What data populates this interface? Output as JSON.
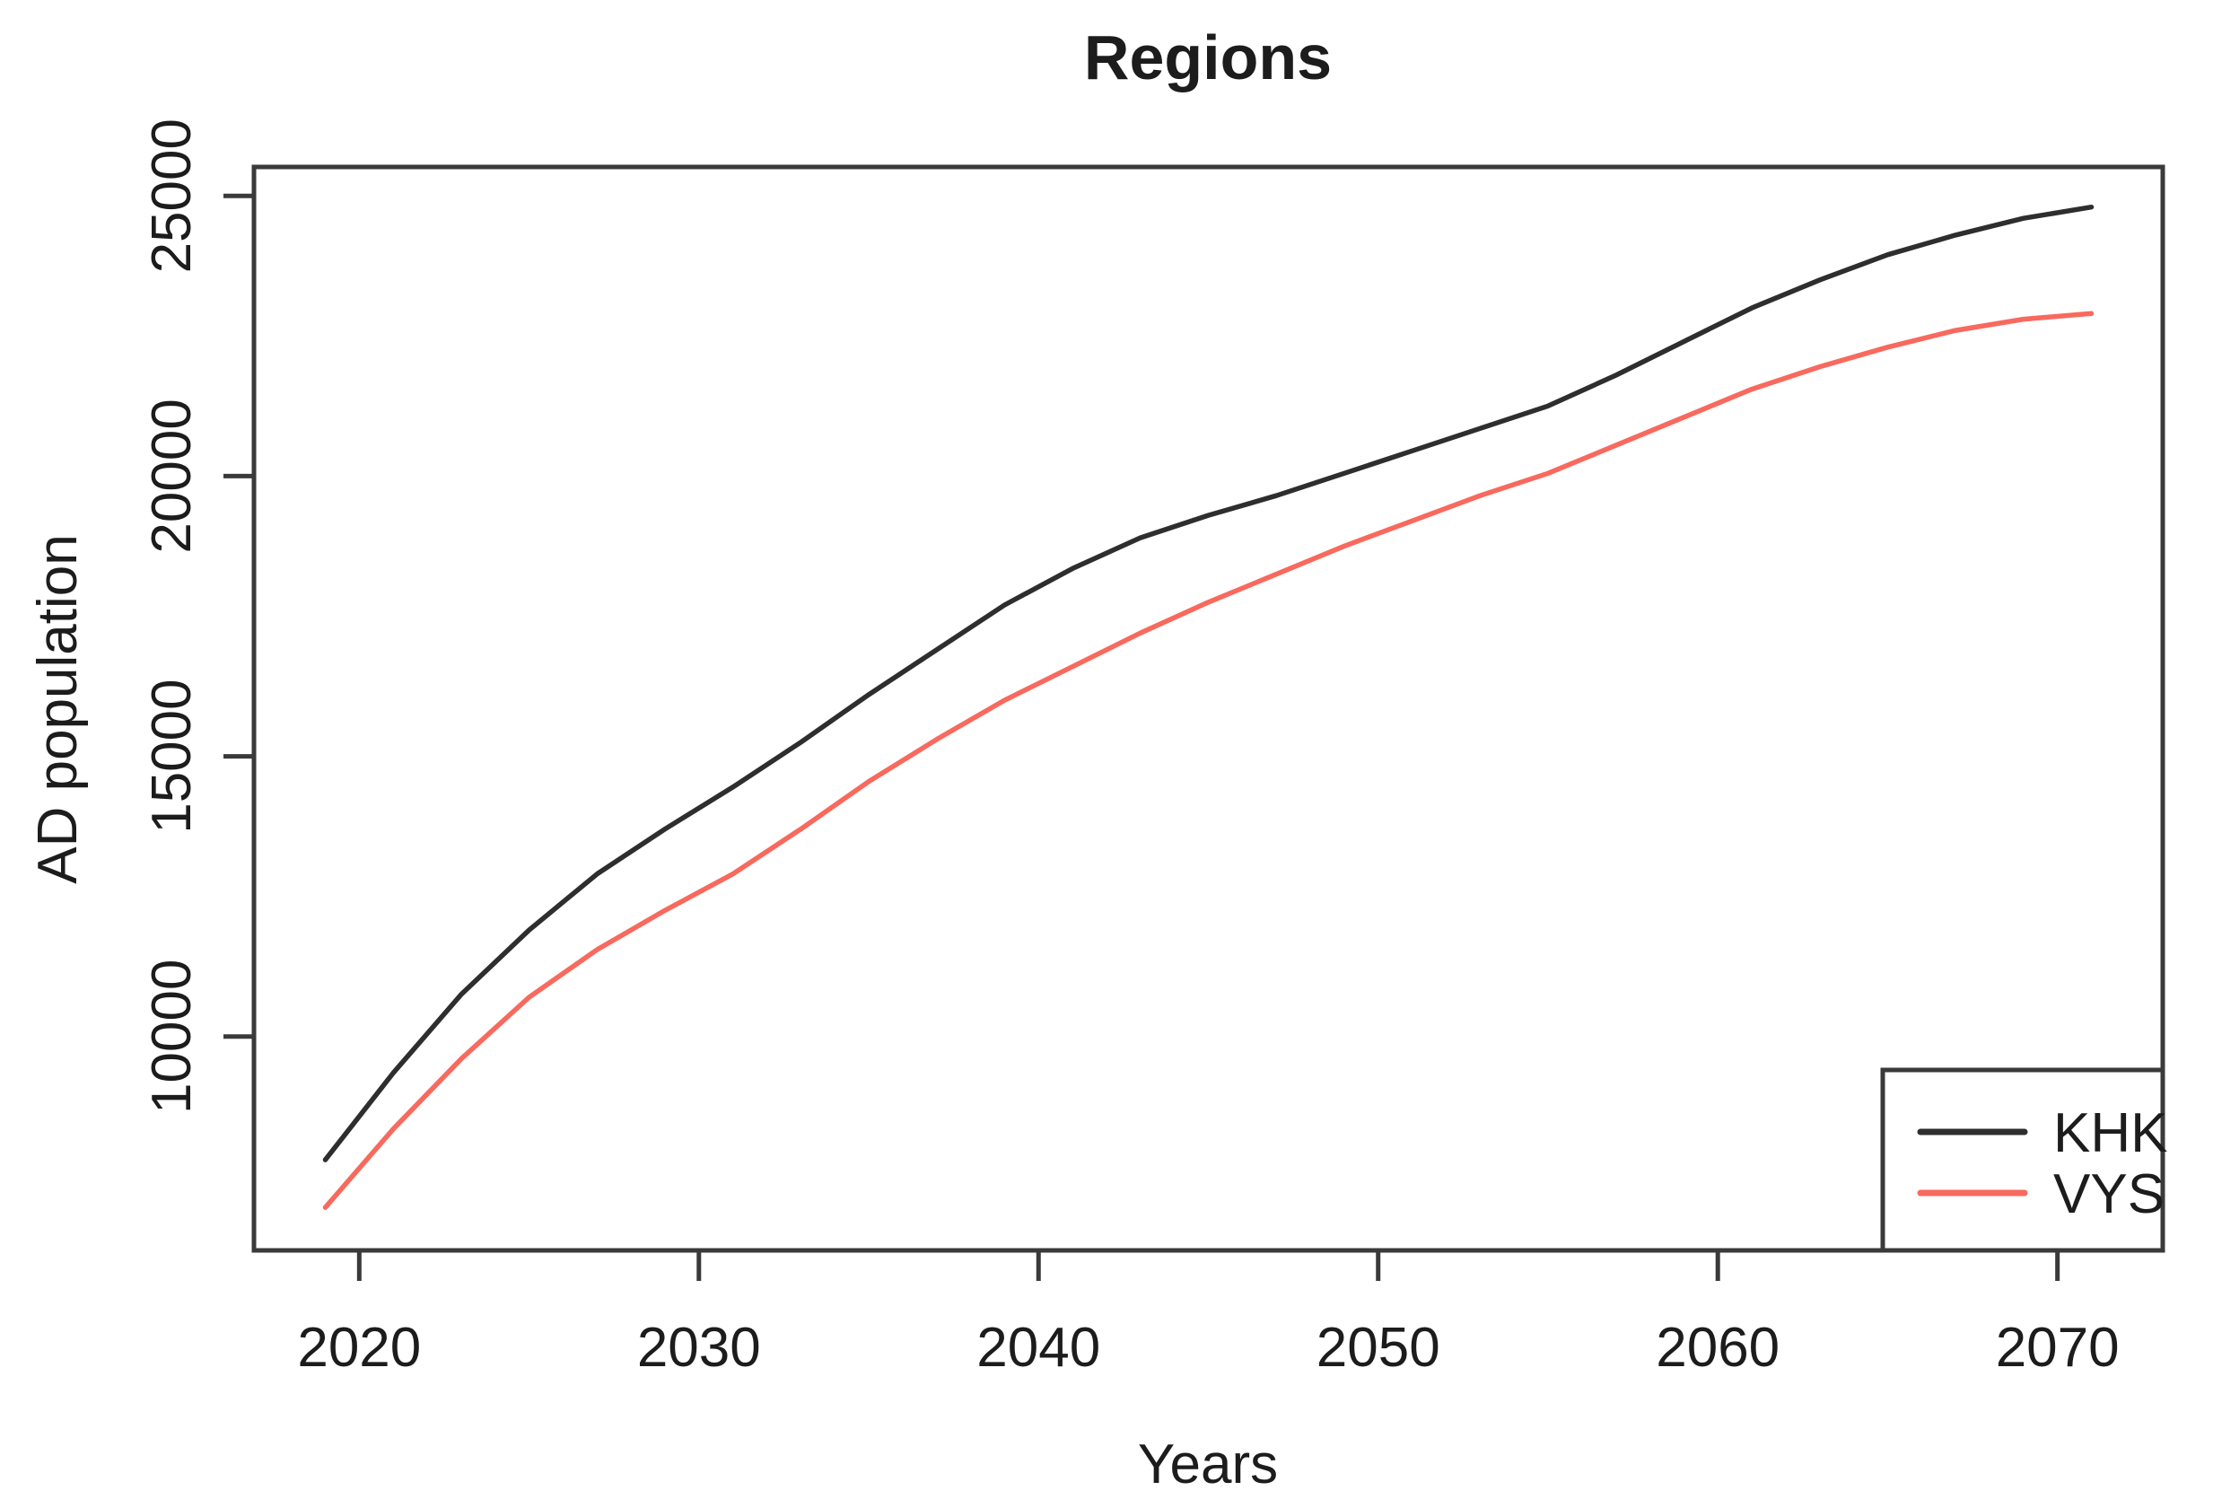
{
  "figure": {
    "title": "Regions",
    "x_axis_label": "Years",
    "y_axis_label": "AD population"
  },
  "colors": {
    "background": "#ffffff",
    "axis": "#3a3a3a",
    "text": "#1c1c1c",
    "khk_line": "#2e2e2e",
    "vys_line": "#f8695e"
  },
  "legend": {
    "entries": [
      {
        "label": "KHK",
        "color": "#2e2e2e"
      },
      {
        "label": "VYS",
        "color": "#f8695e"
      }
    ]
  },
  "chart_data": {
    "type": "line",
    "title": "Regions",
    "xlabel": "Years",
    "ylabel": "AD population",
    "grid": false,
    "legend_position": "bottomright",
    "xlim": [
      2016.9,
      2073.1
    ],
    "ylim": [
      6184,
      25516
    ],
    "xticks": [
      2020,
      2030,
      2040,
      2050,
      2060,
      2070
    ],
    "yticks": [
      10000,
      15000,
      20000,
      25000
    ],
    "x": [
      2019,
      2021,
      2023,
      2025,
      2027,
      2029,
      2031,
      2033,
      2035,
      2037,
      2039,
      2041,
      2043,
      2045,
      2047,
      2049,
      2051,
      2053,
      2055,
      2057,
      2059,
      2061,
      2063,
      2065,
      2067,
      2069,
      2071
    ],
    "series": [
      {
        "name": "KHK",
        "color": "#2e2e2e",
        "values": [
          7800,
          9350,
          10750,
          11900,
          12900,
          13700,
          14450,
          15250,
          16100,
          16900,
          17700,
          18350,
          18900,
          19300,
          19650,
          20050,
          20450,
          20850,
          21250,
          21800,
          22400,
          23000,
          23500,
          23950,
          24300,
          24600,
          24800
        ]
      },
      {
        "name": "VYS",
        "color": "#f8695e",
        "values": [
          6950,
          8350,
          9600,
          10700,
          11550,
          12250,
          12900,
          13700,
          14550,
          15300,
          16000,
          16600,
          17200,
          17750,
          18250,
          18750,
          19200,
          19650,
          20050,
          20550,
          21050,
          21550,
          21950,
          22300,
          22600,
          22800,
          22900
        ]
      }
    ]
  }
}
